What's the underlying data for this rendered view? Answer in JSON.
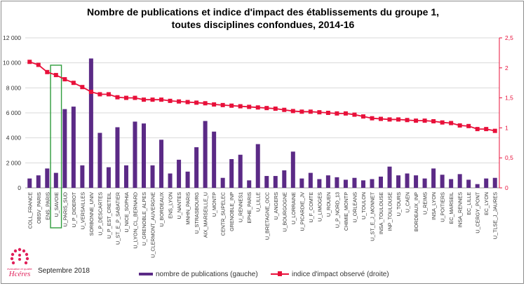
{
  "chart_data": {
    "type": "bar",
    "title_lines": [
      "Nombre de publications et indice d'impact des établissements du groupe 1,",
      "toutes disciplines confondues, 2014-16"
    ],
    "categories": [
      "COLL_FRANCE",
      "OBSV_PARIS",
      "ENS_PARIS",
      "U_SAVOIE",
      "U_PARIS_SUD",
      "U_P_DIDEROT",
      "U_VERSAILLES",
      "SORBONNE_UNIV",
      "U_P_DESCARTES",
      "U_P_EST_CRETEIL",
      "U_ST_E_P_SABATIER",
      "U_NICE_SOPHIA",
      "U_LYON_CL_BERNARD",
      "U_GRENOBLE_ALPES",
      "U_CLERMONT_AUVERGNE",
      "U_BORDEAUX",
      "ENS_LYON",
      "U_NANTES",
      "MNHN_PARIS",
      "U_STRASBOURG",
      "AIX_MARSEILLE_U",
      "U_MONTP",
      "CENTR_SUPELEC",
      "GRENOBLE_INP",
      "U_RENNES1",
      "EPHE_PARIS",
      "U_LILLE",
      "U_BRETAGNE_OCC",
      "U_ANGERS",
      "U_BOURGOGNE",
      "U_LORRAINE",
      "U_PICARDIE_JV",
      "U_F_COMTE",
      "U_LIMOGES",
      "U_ROUEN",
      "U_P_NORD_13",
      "CHIMIE_MONTP",
      "U_ORLEANS",
      "U_TOULON",
      "U_ST_E_J_MONNET",
      "INSA_TOULOUSE",
      "INP_TOULOUSE",
      "U_TOURS",
      "U_CAEN",
      "BORDEAUX_INP",
      "U_REIMS",
      "INSA_LYON",
      "U_POITIERS",
      "EC_MARSEIL",
      "INSA_RENNES",
      "EC_LILLE",
      "U_CERGY_PONT",
      "EC_LYON",
      "U_TLSE_J_JAURES"
    ],
    "series": [
      {
        "name": "nombre de publications (gauche)",
        "type": "bar",
        "axis": "left",
        "color": "#5b2a86",
        "values": [
          750,
          1000,
          1550,
          1200,
          6300,
          6500,
          1800,
          10350,
          4400,
          1650,
          4850,
          1800,
          5300,
          5150,
          1800,
          3850,
          1150,
          2250,
          1300,
          3250,
          5350,
          4500,
          800,
          2300,
          2650,
          600,
          3500,
          950,
          950,
          1400,
          2900,
          750,
          1200,
          700,
          1000,
          850,
          650,
          800,
          600,
          700,
          900,
          1700,
          1000,
          1150,
          1000,
          750,
          1550,
          1050,
          700,
          1100,
          650,
          300,
          750,
          800
        ]
      },
      {
        "name": "indice d'impact observé (droite)",
        "type": "line",
        "axis": "right",
        "color": "#e8103a",
        "values": [
          2.1,
          2.05,
          1.93,
          1.88,
          1.81,
          1.75,
          1.68,
          1.6,
          1.56,
          1.56,
          1.51,
          1.5,
          1.5,
          1.47,
          1.47,
          1.47,
          1.45,
          1.44,
          1.43,
          1.42,
          1.41,
          1.39,
          1.38,
          1.37,
          1.36,
          1.35,
          1.34,
          1.33,
          1.32,
          1.3,
          1.28,
          1.27,
          1.27,
          1.26,
          1.25,
          1.24,
          1.24,
          1.22,
          1.19,
          1.16,
          1.15,
          1.14,
          1.14,
          1.13,
          1.12,
          1.12,
          1.11,
          1.09,
          1.08,
          1.04,
          1.03,
          0.98,
          0.98,
          0.95
        ]
      }
    ],
    "y_left": {
      "min": 0,
      "max": 12000,
      "ticks": [
        "0",
        "2 000",
        "4 000",
        "6 000",
        "8 000",
        "10 000",
        "12 000"
      ]
    },
    "y_right": {
      "min": 0,
      "max": 2.5,
      "ticks": [
        "0",
        "0,5",
        "1",
        "1,5",
        "2",
        "2,5"
      ]
    },
    "highlight_category": "U_SAVOIE",
    "highlight_color": "#2e9c3c",
    "grid": true,
    "legend_position": "bottom"
  },
  "footer": {
    "date": "Septembre 2018",
    "logo_text": "Hcéres",
    "logo_tagline": "évaluation et qualité"
  }
}
